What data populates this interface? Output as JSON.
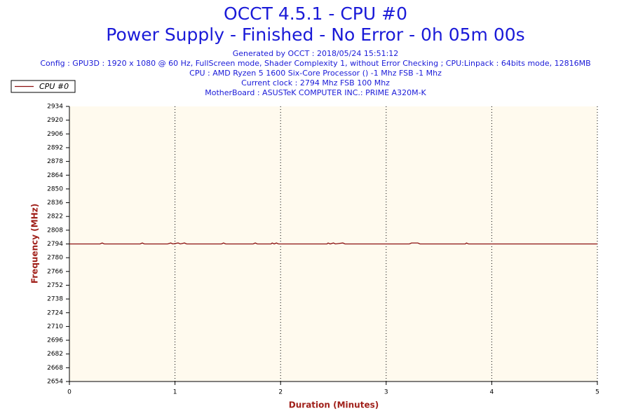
{
  "chart_data": {
    "type": "line",
    "title": "OCCT 4.5.1 - CPU #0",
    "subtitle": "Power Supply - Finished - No Error - 0h 05m 00s",
    "notes": [
      "Generated by OCCT : 2018/05/24 15:51:12",
      "Config : GPU3D : 1920 x 1080 @ 60 Hz, FullScreen mode, Shader Complexity 1, without Error Checking ; CPU:Linpack : 64bits mode, 12816MB",
      "CPU : AMD Ryzen 5 1600 Six-Core Processor () -1 Mhz FSB -1 Mhz",
      "Current clock : 2794 Mhz FSB 100 Mhz",
      "MotherBoard : ASUSTeK COMPUTER INC.: PRIME A320M-K"
    ],
    "x_label": "Duration (Minutes)",
    "y_label": "Frequency (MHz)",
    "x": [
      0,
      0.29,
      0.31,
      0.33,
      0.67,
      0.69,
      0.71,
      0.93,
      0.96,
      0.98,
      1.03,
      1.05,
      1.09,
      1.11,
      1.44,
      1.46,
      1.48,
      1.74,
      1.76,
      1.78,
      1.91,
      1.92,
      1.94,
      1.96,
      1.98,
      2.44,
      2.45,
      2.47,
      2.5,
      2.52,
      2.59,
      2.61,
      3.22,
      3.24,
      3.3,
      3.32,
      3.75,
      3.76,
      3.78,
      5
    ],
    "series": [
      {
        "name": "CPU #0",
        "color": "#8b1010",
        "values": [
          2794,
          2794,
          2795,
          2794,
          2794,
          2795,
          2794,
          2794,
          2795,
          2794,
          2795,
          2794,
          2795,
          2794,
          2794,
          2795,
          2794,
          2794,
          2795,
          2794,
          2794,
          2795,
          2794,
          2795,
          2794,
          2794,
          2795,
          2794,
          2795,
          2794,
          2795,
          2794,
          2794,
          2795,
          2795,
          2794,
          2794,
          2795,
          2794,
          2794
        ]
      }
    ],
    "xlim": [
      0,
      5
    ],
    "xticks": [
      0,
      1,
      2,
      3,
      4,
      5
    ],
    "ylim": [
      2654,
      2934
    ],
    "yticks": [
      2654,
      2668,
      2682,
      2696,
      2710,
      2724,
      2738,
      2752,
      2766,
      2780,
      2794,
      2808,
      2822,
      2836,
      2850,
      2864,
      2878,
      2892,
      2906,
      2920,
      2934
    ],
    "grid": "x",
    "legend": "top-left"
  }
}
